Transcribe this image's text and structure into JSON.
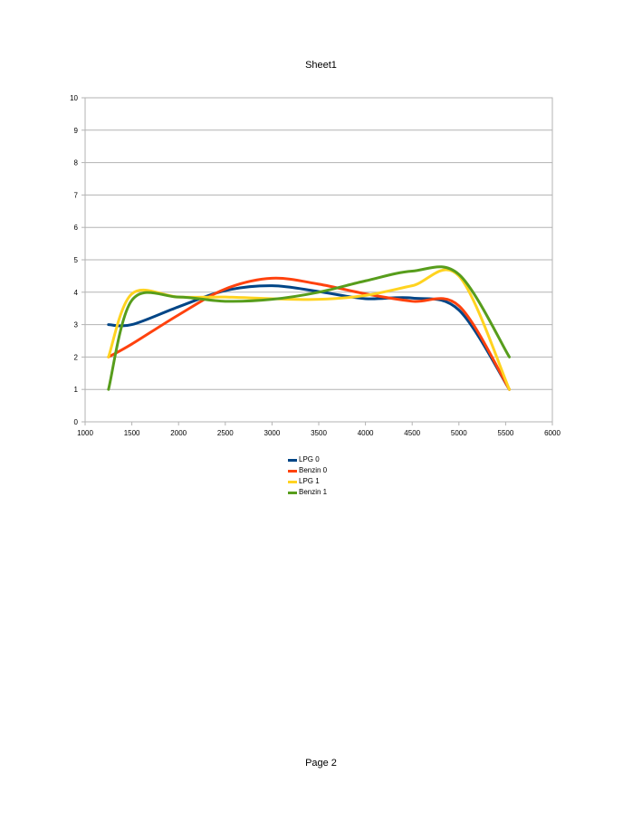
{
  "page": {
    "title": "Sheet1",
    "footer": "Page 2"
  },
  "chart_data": {
    "type": "line",
    "title": "Sheet1",
    "xlabel": "",
    "ylabel": "",
    "xlim": [
      1000,
      6000
    ],
    "ylim": [
      0,
      10
    ],
    "xticks": [
      1000,
      1500,
      2000,
      2500,
      3000,
      3500,
      4000,
      4500,
      5000,
      5500,
      6000
    ],
    "yticks": [
      0,
      1,
      2,
      3,
      4,
      5,
      6,
      7,
      8,
      9,
      10
    ],
    "grid": "horizontal",
    "legend_position": "bottom",
    "series": [
      {
        "name": "LPG 0",
        "color": "#004586",
        "x": [
          1250,
          1500,
          2000,
          2500,
          3000,
          3500,
          4000,
          4500,
          5000,
          5540
        ],
        "y": [
          3.0,
          3.0,
          3.55,
          4.05,
          4.2,
          4.02,
          3.8,
          3.82,
          3.45,
          1.0
        ]
      },
      {
        "name": "Benzin 0",
        "color": "#FF420E",
        "x": [
          1250,
          1500,
          2000,
          2500,
          3000,
          3500,
          4000,
          4500,
          5000,
          5540
        ],
        "y": [
          2.0,
          2.4,
          3.3,
          4.1,
          4.43,
          4.25,
          3.95,
          3.72,
          3.58,
          1.0
        ]
      },
      {
        "name": "LPG 1",
        "color": "#FFD320",
        "x": [
          1250,
          1500,
          2000,
          2500,
          3000,
          3500,
          4000,
          4500,
          5000,
          5540
        ],
        "y": [
          2.0,
          3.95,
          3.85,
          3.85,
          3.8,
          3.78,
          3.9,
          4.2,
          4.5,
          1.0
        ]
      },
      {
        "name": "Benzin 1",
        "color": "#579D1C",
        "x": [
          1250,
          1500,
          2000,
          2500,
          3000,
          3500,
          4000,
          4500,
          5000,
          5540
        ],
        "y": [
          1.0,
          3.75,
          3.85,
          3.72,
          3.78,
          4.0,
          4.35,
          4.65,
          4.55,
          2.0
        ]
      }
    ]
  }
}
